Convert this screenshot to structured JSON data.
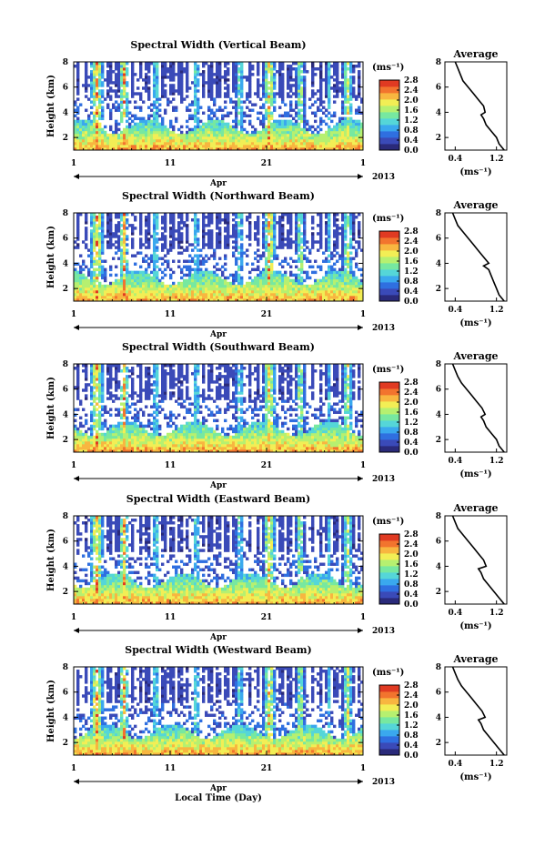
{
  "figure": {
    "xlabel": "Local Time (Day)",
    "month_label": "Apr",
    "year_label": "2013",
    "x_ticks": [
      "1",
      "11",
      "21",
      "1"
    ],
    "ylabel": "Height (km)",
    "y_ticks": [
      "2",
      "4",
      "6",
      "8"
    ],
    "unit_label": "(ms⁻¹)",
    "avg_title": "Average",
    "avg_x_ticks": [
      "0.4",
      "1.2"
    ],
    "avg_xlabel": "(ms⁻¹)"
  },
  "colors": {
    "colormap": [
      "#2a2a7a",
      "#3a4ab8",
      "#2f6fe0",
      "#3aa8ee",
      "#55d6d8",
      "#77e8a0",
      "#b6f070",
      "#f2ee55",
      "#f8b640",
      "#f2742e",
      "#e03a22"
    ]
  },
  "chart_data": [
    {
      "type": "heatmap",
      "title": "Spectral Width (Vertical Beam)",
      "xlabel": "Local Time (Day)",
      "ylabel": "Height (km)",
      "xlim_days": [
        1,
        31
      ],
      "ylim_km": [
        1,
        8
      ],
      "colorbar": {
        "label": "(ms⁻¹)",
        "range": [
          0,
          2.8
        ],
        "tick_labels": [
          "0.0",
          "0.4",
          "0.8",
          "1.2",
          "1.6",
          "2.0",
          "2.4",
          "2.8"
        ]
      },
      "average_profile": {
        "title": "Average",
        "xlabel": "(ms⁻¹)",
        "xlim": [
          0.2,
          1.4
        ],
        "ylim": [
          1,
          8
        ],
        "height_km": [
          1.0,
          1.5,
          2.0,
          2.5,
          3.0,
          3.5,
          3.8,
          4.0,
          4.5,
          5.0,
          5.5,
          6.0,
          6.5,
          7.0,
          7.5,
          8.0
        ],
        "width_ms": [
          1.35,
          1.25,
          1.2,
          1.1,
          1.0,
          0.95,
          0.9,
          0.98,
          0.95,
          0.85,
          0.75,
          0.65,
          0.55,
          0.5,
          0.45,
          0.4
        ]
      }
    },
    {
      "type": "heatmap",
      "title": "Spectral Width (Northward Beam)",
      "xlabel": "Local Time (Day)",
      "ylabel": "Height (km)",
      "xlim_days": [
        1,
        31
      ],
      "ylim_km": [
        1,
        8
      ],
      "colorbar": {
        "label": "(ms⁻¹)",
        "range": [
          0,
          2.8
        ],
        "tick_labels": [
          "0.0",
          "0.4",
          "0.8",
          "1.2",
          "1.6",
          "2.0",
          "2.4",
          "2.8"
        ]
      },
      "average_profile": {
        "title": "Average",
        "xlabel": "(ms⁻¹)",
        "xlim": [
          0.2,
          1.4
        ],
        "ylim": [
          1,
          8
        ],
        "height_km": [
          1.0,
          1.5,
          2.0,
          2.5,
          3.0,
          3.5,
          3.8,
          4.0,
          4.5,
          5.0,
          5.5,
          6.0,
          6.5,
          7.0,
          7.5,
          8.0
        ],
        "width_ms": [
          1.35,
          1.25,
          1.2,
          1.15,
          1.1,
          1.05,
          0.95,
          1.05,
          0.95,
          0.85,
          0.75,
          0.65,
          0.55,
          0.45,
          0.4,
          0.35
        ]
      }
    },
    {
      "type": "heatmap",
      "title": "Spectral Width (Southward Beam)",
      "xlabel": "Local Time (Day)",
      "ylabel": "Height (km)",
      "xlim_days": [
        1,
        31
      ],
      "ylim_km": [
        1,
        8
      ],
      "colorbar": {
        "label": "(ms⁻¹)",
        "range": [
          0,
          2.8
        ],
        "tick_labels": [
          "0.0",
          "0.4",
          "0.8",
          "1.2",
          "1.6",
          "2.0",
          "2.4",
          "2.8"
        ]
      },
      "average_profile": {
        "title": "Average",
        "xlabel": "(ms⁻¹)",
        "xlim": [
          0.2,
          1.4
        ],
        "ylim": [
          1,
          8
        ],
        "height_km": [
          1.0,
          1.5,
          2.0,
          2.5,
          3.0,
          3.5,
          3.8,
          4.0,
          4.5,
          5.0,
          5.5,
          6.0,
          6.5,
          7.0,
          7.5,
          8.0
        ],
        "width_ms": [
          1.35,
          1.25,
          1.2,
          1.1,
          1.0,
          0.95,
          0.9,
          0.98,
          0.92,
          0.82,
          0.72,
          0.62,
          0.52,
          0.45,
          0.4,
          0.35
        ]
      }
    },
    {
      "type": "heatmap",
      "title": "Spectral Width (Eastward Beam)",
      "xlabel": "Local Time (Day)",
      "ylabel": "Height (km)",
      "xlim_days": [
        1,
        31
      ],
      "ylim_km": [
        1,
        8
      ],
      "colorbar": {
        "label": "(ms⁻¹)",
        "range": [
          0,
          2.8
        ],
        "tick_labels": [
          "0.0",
          "0.4",
          "0.8",
          "1.2",
          "1.6",
          "2.0",
          "2.4",
          "2.8"
        ]
      },
      "average_profile": {
        "title": "Average",
        "xlabel": "(ms⁻¹)",
        "xlim": [
          0.2,
          1.4
        ],
        "ylim": [
          1,
          8
        ],
        "height_km": [
          1.0,
          1.5,
          2.0,
          2.5,
          3.0,
          3.5,
          3.8,
          4.0,
          4.5,
          5.0,
          5.5,
          6.0,
          6.5,
          7.0,
          7.5,
          8.0
        ],
        "width_ms": [
          1.35,
          1.25,
          1.15,
          1.05,
          0.95,
          0.9,
          0.85,
          1.0,
          0.95,
          0.85,
          0.75,
          0.65,
          0.55,
          0.45,
          0.4,
          0.35
        ]
      }
    },
    {
      "type": "heatmap",
      "title": "Spectral Width (Westward Beam)",
      "xlabel": "Local Time (Day)",
      "ylabel": "Height (km)",
      "xlim_days": [
        1,
        31
      ],
      "ylim_km": [
        1,
        8
      ],
      "colorbar": {
        "label": "(ms⁻¹)",
        "range": [
          0,
          2.8
        ],
        "tick_labels": [
          "0.0",
          "0.4",
          "0.8",
          "1.2",
          "1.6",
          "2.0",
          "2.4",
          "2.8"
        ]
      },
      "average_profile": {
        "title": "Average",
        "xlabel": "(ms⁻¹)",
        "xlim": [
          0.2,
          1.4
        ],
        "ylim": [
          1,
          8
        ],
        "height_km": [
          1.0,
          1.5,
          2.0,
          2.5,
          3.0,
          3.5,
          3.8,
          4.0,
          4.5,
          5.0,
          5.5,
          6.0,
          6.5,
          7.0,
          7.5,
          8.0
        ],
        "width_ms": [
          1.35,
          1.25,
          1.15,
          1.05,
          0.95,
          0.9,
          0.85,
          0.98,
          0.92,
          0.82,
          0.72,
          0.62,
          0.52,
          0.45,
          0.4,
          0.35
        ]
      }
    }
  ]
}
